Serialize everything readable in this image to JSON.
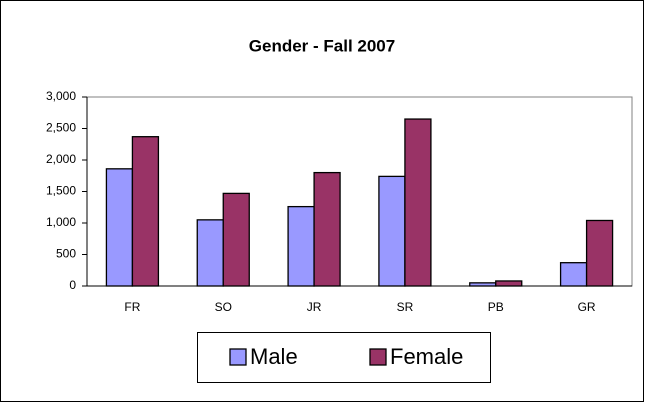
{
  "chart_data": {
    "type": "bar",
    "title": "Gender - Fall 2007",
    "categories": [
      "FR",
      "SO",
      "JR",
      "SR",
      "PB",
      "GR"
    ],
    "series": [
      {
        "name": "Male",
        "color": "#9999ff",
        "values": [
          1860,
          1050,
          1260,
          1740,
          50,
          370
        ]
      },
      {
        "name": "Female",
        "color": "#993366",
        "values": [
          2370,
          1470,
          1800,
          2650,
          80,
          1040
        ]
      }
    ],
    "ylim": [
      0,
      3000
    ],
    "yticks": [
      0,
      500,
      {
        "value": 1000,
        "label": "1,000"
      },
      {
        "value": 1500,
        "label": "1,500"
      },
      {
        "value": 2000,
        "label": "2,000"
      },
      {
        "value": 2500,
        "label": "2,500"
      },
      {
        "value": 3000,
        "label": "3,000"
      }
    ],
    "grid": false,
    "legend": "bottom"
  }
}
